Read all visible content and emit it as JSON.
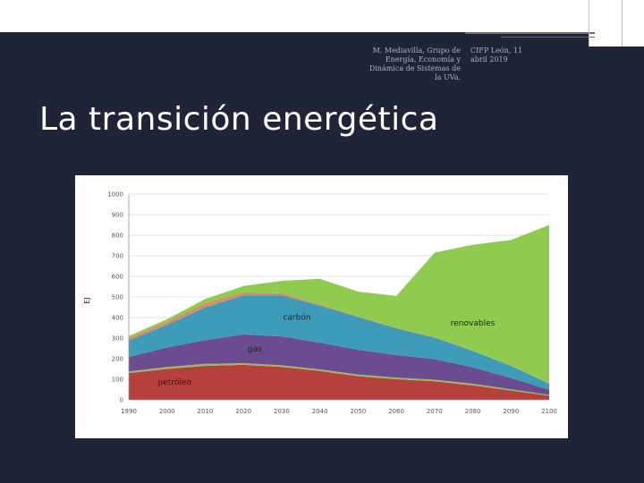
{
  "header": {
    "left_lines": [
      "M. Mediavilla, Grupo de",
      "Energía, Economía y",
      "Dinámica de Sistemas de",
      "la UVa."
    ],
    "right_lines": [
      "CIFP León, 11",
      "abril 2019"
    ]
  },
  "slide": {
    "title": "La transición energética"
  },
  "colors": {
    "background": "#1f2536",
    "petroleo": "#b5403c",
    "band_green": "#9bbb59",
    "band_salmon": "#d98b6b",
    "gas": "#6b4c8e",
    "carbon": "#3f9cb8",
    "renovables": "#8fcb4e"
  },
  "chart_data": {
    "type": "area",
    "title": "",
    "xlabel": "",
    "ylabel": "EJ",
    "ylim": [
      0,
      1000
    ],
    "xlim": [
      1990,
      2100
    ],
    "grid": true,
    "y_ticks": [
      "0",
      "100",
      "200",
      "300",
      "400",
      "500",
      "600",
      "700",
      "800",
      "900",
      "1000"
    ],
    "x_ticks": [
      "1990",
      "2000",
      "2010",
      "2020",
      "2030",
      "2040",
      "2050",
      "2060",
      "2070",
      "2080",
      "2090",
      "2100"
    ],
    "x": [
      1990,
      2000,
      2010,
      2020,
      2030,
      2040,
      2050,
      2060,
      2070,
      2080,
      2090,
      2100
    ],
    "series": [
      {
        "name": "petróleo",
        "color": "#b5403c",
        "values": [
          130,
          150,
          165,
          170,
          160,
          140,
          115,
          100,
          90,
          70,
          45,
          20
        ]
      },
      {
        "name": "",
        "color": "#9bbb59",
        "values": [
          8,
          10,
          10,
          8,
          8,
          8,
          8,
          8,
          8,
          8,
          6,
          4
        ]
      },
      {
        "name": "gas",
        "color": "#6b4c8e",
        "values": [
          70,
          95,
          115,
          140,
          140,
          130,
          120,
          110,
          100,
          80,
          55,
          25
        ]
      },
      {
        "name": "carbón",
        "color": "#3f9cb8",
        "values": [
          80,
          110,
          160,
          190,
          200,
          180,
          160,
          130,
          105,
          80,
          60,
          30
        ]
      },
      {
        "name": "",
        "color": "#d98b6b",
        "values": [
          12,
          15,
          20,
          15,
          10,
          5,
          3,
          2,
          2,
          1,
          1,
          1
        ]
      },
      {
        "name": "renovables",
        "color": "#8fcb4e",
        "values": [
          10,
          12,
          20,
          30,
          60,
          125,
          120,
          155,
          410,
          515,
          610,
          770
        ]
      }
    ],
    "annotations": [
      {
        "text": "carbón",
        "x": 2034,
        "y": 390
      },
      {
        "text": "renovables",
        "x": 2080,
        "y": 360
      },
      {
        "text": "gas",
        "x": 2023,
        "y": 235
      },
      {
        "text": "petróleo",
        "x": 2002,
        "y": 75
      }
    ]
  }
}
